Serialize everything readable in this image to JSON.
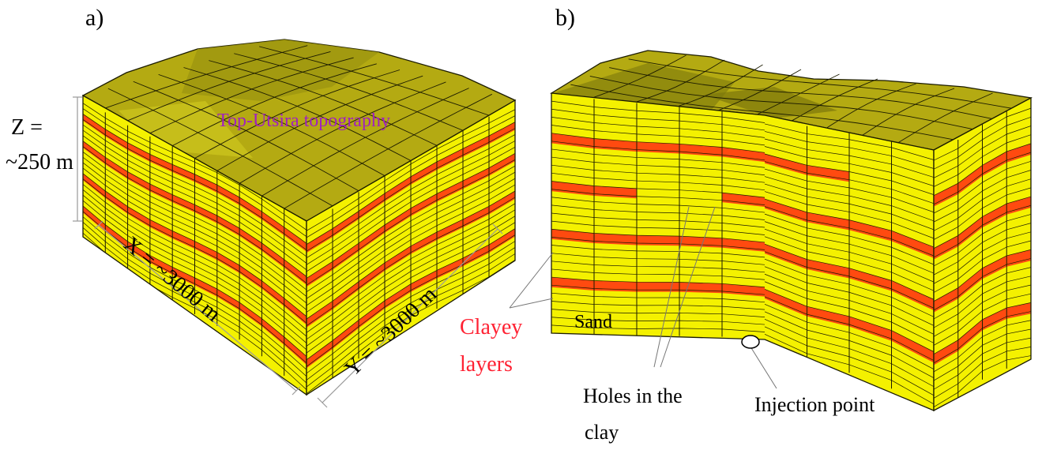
{
  "panel_a": {
    "label": "a)",
    "dim_z_line1": "Z =",
    "dim_z_line2": "~250 m",
    "dim_x": "X = ~3000 m",
    "dim_y": "Y = ~3000 m",
    "top_label": "Top-Utsira topography"
  },
  "panel_b": {
    "label": "b)",
    "clay_line1": "Clayey",
    "clay_line2": "layers",
    "sand": "Sand",
    "holes_line1": "Holes in the",
    "holes_line2": "clay",
    "injection": "Injection point"
  },
  "colors": {
    "sand": "#f4f100",
    "clay": "#ff4a10",
    "top": "#b4aa12",
    "top_dark": "#8a840e",
    "grid": "#1b1b00",
    "clay_label": "#ff2233",
    "topography_label": "#a020c0"
  }
}
